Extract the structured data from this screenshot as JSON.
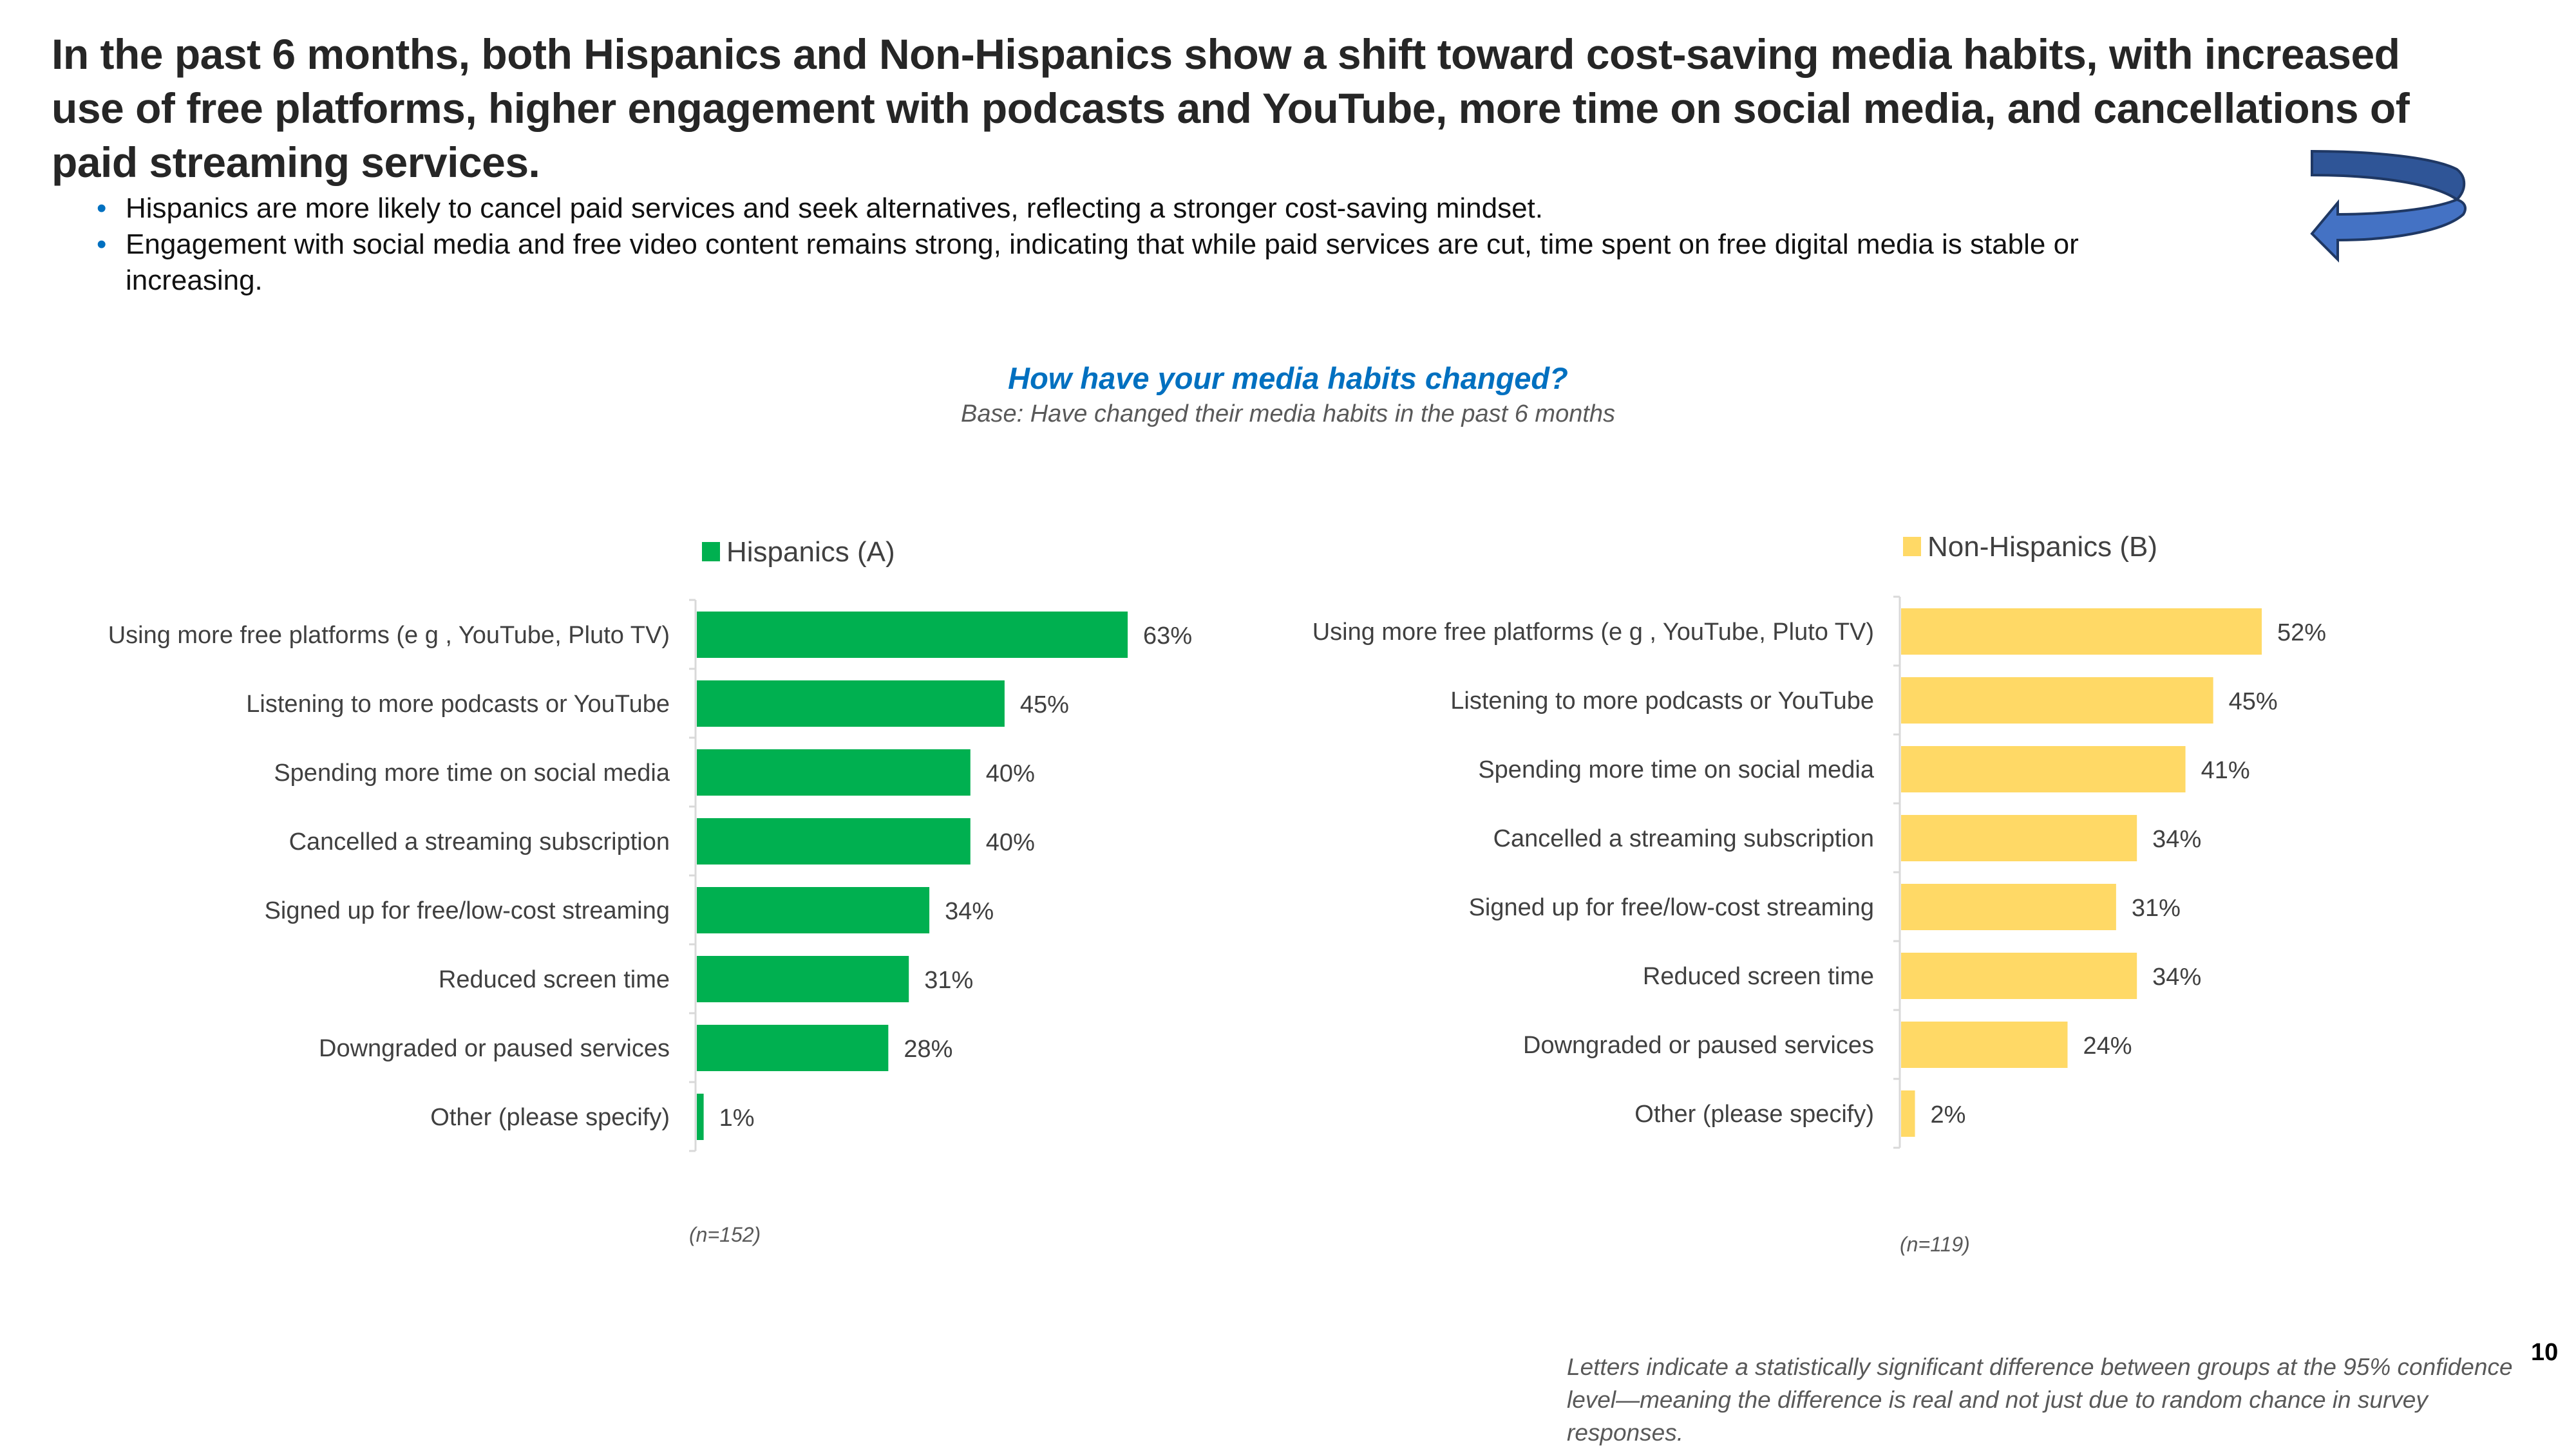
{
  "slide": {
    "headline": "In the past 6 months, both Hispanics and Non-Hispanics show a shift toward cost-saving media habits, with increased use of free platforms, higher engagement with podcasts and YouTube, more time on social media, and cancellations of paid streaming services.",
    "bullets": [
      "Hispanics are more likely to cancel paid services and seek alternatives, reflecting a stronger cost-saving mindset.",
      "Engagement with social media and free video content remains strong, indicating that while paid services are cut, time spent on free digital media is stable or increasing."
    ],
    "bullet_color": "#0070c0",
    "arrow_icon": "u-turn-arrow-icon",
    "question_title": "How have your media habits changed?",
    "question_base": "Base: Have changed their media habits in the past 6 months",
    "footnote": "Letters indicate a statistically significant difference between groups at the 95% confidence level—meaning the difference is real and not just due to random chance in survey responses.",
    "page_number": "10"
  },
  "chart_data": [
    {
      "type": "bar",
      "orientation": "horizontal",
      "title": "How have your media habits changed?",
      "legend": "Hispanics (A)",
      "legend_position": "top",
      "color": "#00b050",
      "sample_size": "(n=152)",
      "categories": [
        "Using more free platforms (e g , YouTube, Pluto TV)",
        "Listening to more podcasts or YouTube",
        "Spending more time on social media",
        "Cancelled a streaming subscription",
        "Signed up for free/low-cost streaming",
        "Reduced screen time",
        "Downgraded or paused services",
        "Other (please specify)"
      ],
      "values": [
        63,
        45,
        40,
        40,
        34,
        31,
        28,
        1
      ],
      "value_labels": [
        "63%",
        "45%",
        "40%",
        "40%",
        "34%",
        "31%",
        "28%",
        "1%"
      ],
      "unit": "%",
      "grid": false
    },
    {
      "type": "bar",
      "orientation": "horizontal",
      "title": "How have your media habits changed?",
      "legend": "Non-Hispanics (B)",
      "legend_position": "top",
      "color": "#ffd966",
      "sample_size": "(n=119)",
      "categories": [
        "Using more free platforms (e g , YouTube, Pluto TV)",
        "Listening to more podcasts or YouTube",
        "Spending more time on social media",
        "Cancelled a streaming subscription",
        "Signed up for free/low-cost streaming",
        "Reduced screen time",
        "Downgraded or paused services",
        "Other (please specify)"
      ],
      "values": [
        52,
        45,
        41,
        34,
        31,
        34,
        24,
        2
      ],
      "value_labels": [
        "52%",
        "45%",
        "41%",
        "34%",
        "31%",
        "34%",
        "24%",
        "2%"
      ],
      "unit": "%",
      "grid": false
    }
  ]
}
